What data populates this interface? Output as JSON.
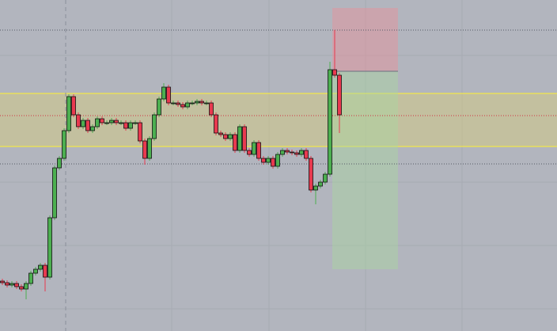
{
  "chart_data": {
    "type": "candlestick",
    "open": [
      63,
      61,
      58,
      60,
      56,
      53,
      60,
      73,
      78,
      83,
      68,
      143,
      206,
      218,
      253,
      296,
      273,
      258,
      266,
      253,
      258,
      268,
      263,
      263,
      266,
      263,
      263,
      256,
      263,
      263,
      240,
      218,
      243,
      273,
      293,
      308,
      288,
      288,
      286,
      283,
      288,
      288,
      290,
      288,
      288,
      273,
      250,
      248,
      243,
      248,
      228,
      258,
      228,
      223,
      238,
      218,
      213,
      218,
      208,
      223,
      228,
      226,
      225,
      223,
      228,
      218,
      178,
      183,
      188,
      198,
      330,
      323
    ],
    "high": [
      66,
      64,
      63,
      63,
      59,
      63,
      76,
      81,
      86,
      86,
      146,
      209,
      221,
      256,
      299,
      299,
      276,
      269,
      269,
      261,
      271,
      271,
      266,
      269,
      269,
      266,
      266,
      266,
      266,
      266,
      243,
      246,
      276,
      296,
      313,
      311,
      291,
      291,
      289,
      291,
      291,
      293,
      293,
      291,
      291,
      276,
      253,
      251,
      251,
      251,
      261,
      261,
      231,
      241,
      241,
      221,
      221,
      221,
      226,
      231,
      231,
      229,
      228,
      231,
      231,
      221,
      186,
      191,
      201,
      340,
      380,
      326
    ],
    "low": [
      58,
      55,
      55,
      53,
      50,
      40,
      57,
      70,
      75,
      50,
      65,
      140,
      203,
      215,
      250,
      270,
      255,
      255,
      250,
      250,
      255,
      260,
      260,
      260,
      260,
      260,
      253,
      253,
      260,
      237,
      210,
      215,
      240,
      270,
      290,
      285,
      285,
      283,
      280,
      280,
      285,
      285,
      285,
      285,
      270,
      247,
      245,
      240,
      240,
      225,
      225,
      225,
      220,
      220,
      215,
      210,
      210,
      205,
      205,
      220,
      223,
      222,
      220,
      220,
      215,
      175,
      160,
      180,
      185,
      195,
      320,
      250
    ],
    "close": [
      61,
      58,
      60,
      56,
      53,
      60,
      73,
      78,
      83,
      68,
      143,
      206,
      218,
      253,
      296,
      273,
      258,
      266,
      253,
      258,
      268,
      263,
      263,
      266,
      263,
      263,
      256,
      263,
      263,
      240,
      218,
      243,
      273,
      293,
      308,
      288,
      288,
      286,
      283,
      288,
      288,
      290,
      288,
      288,
      273,
      250,
      248,
      243,
      248,
      228,
      258,
      228,
      223,
      238,
      218,
      213,
      218,
      208,
      223,
      228,
      226,
      225,
      223,
      228,
      218,
      178,
      183,
      188,
      198,
      330,
      323,
      273
    ],
    "ylim": [
      0,
      418
    ],
    "up_color": "#4caf50",
    "down_color": "#e8394f"
  }
}
